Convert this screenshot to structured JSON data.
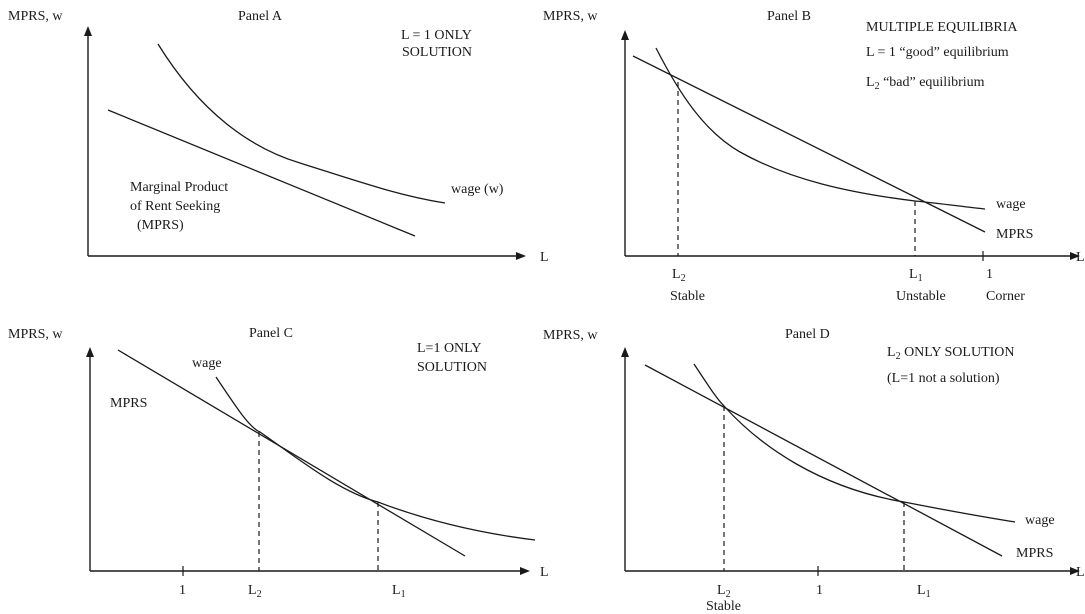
{
  "panel_a": {
    "axis_y": "MPRS, w",
    "axis_x": "L",
    "title": "Panel A",
    "note_line1": "L = 1 ONLY",
    "note_line2": "SOLUTION",
    "curve_wage": "wage (w)",
    "mprs_line1": "Marginal Product",
    "mprs_line2": "of Rent Seeking",
    "mprs_line3": "(MPRS)"
  },
  "panel_b": {
    "axis_y": "MPRS, w",
    "axis_x": "L",
    "title": "Panel B",
    "note_line1": "MULTIPLE EQUILIBRIA",
    "note_line2": "L = 1 “good” equilibrium",
    "note_line3_sym": "L",
    "note_line3_sub": "2",
    "note_line3_rest": " “bad” equilibrium",
    "curve_wage": "wage",
    "curve_mprs": "MPRS",
    "tick_l2_sym": "L",
    "tick_l2_sub": "2",
    "tick_l1_sym": "L",
    "tick_l1_sub": "1",
    "tick_one": "1",
    "label_stable": "Stable",
    "label_unstable": "Unstable",
    "label_corner": "Corner"
  },
  "panel_c": {
    "axis_y": "MPRS, w",
    "axis_x": "L",
    "title": "Panel C",
    "note_line1": "L=1 ONLY",
    "note_line2": "SOLUTION",
    "curve_wage": "wage",
    "curve_mprs": "MPRS",
    "tick_one": "1",
    "tick_l2_sym": "L",
    "tick_l2_sub": "2",
    "tick_l1_sym": "L",
    "tick_l1_sub": "1"
  },
  "panel_d": {
    "axis_y": "MPRS, w",
    "axis_x": "L",
    "title": "Panel D",
    "note_line1_sym": "L",
    "note_line1_sub": "2",
    "note_line1_rest": " ONLY SOLUTION",
    "note_line2": "(L=1 not a solution)",
    "curve_wage": "wage",
    "curve_mprs": "MPRS",
    "tick_l2_sym": "L",
    "tick_l2_sub": "2",
    "tick_one": "1",
    "tick_l1_sym": "L",
    "tick_l1_sub": "1",
    "label_stable": "Stable"
  }
}
